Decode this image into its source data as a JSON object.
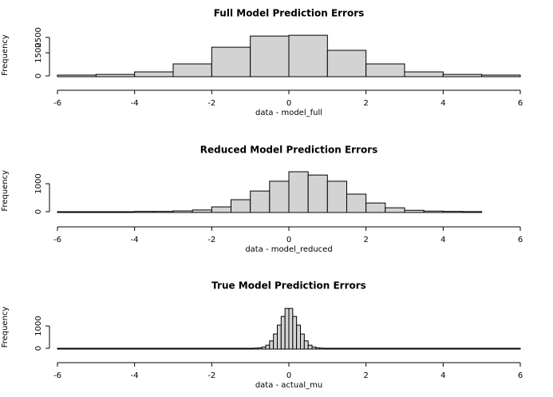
{
  "chart_data": [
    {
      "type": "histogram",
      "title": "Full Model Prediction Errors",
      "xlabel": "data - model_full",
      "ylabel": "Frequency",
      "bins": [
        -6,
        -5,
        -4,
        -3,
        -2,
        -1,
        0,
        1,
        2,
        3,
        4,
        5,
        6
      ],
      "counts": [
        50,
        100,
        260,
        780,
        1860,
        2590,
        2640,
        1660,
        780,
        260,
        100,
        50
      ],
      "color": "#d3d3d3",
      "xlim": [
        -6,
        6
      ],
      "xticks": [
        -6,
        -4,
        -2,
        0,
        2,
        4,
        6
      ],
      "ylim": [
        0,
        2700
      ],
      "yticks": [
        0,
        1500,
        2500
      ]
    },
    {
      "type": "histogram",
      "title": "Reduced Model Prediction Errors",
      "xlabel": "data - model_reduced",
      "ylabel": "Frequency",
      "bins": [
        -6,
        -5.5,
        -5,
        -4.5,
        -4,
        -3.5,
        -3,
        -2.5,
        -2,
        -1.5,
        -1,
        -0.5,
        0,
        0.5,
        1,
        1.5,
        2,
        2.5,
        3,
        3.5,
        4,
        4.5,
        5
      ],
      "counts": [
        0,
        0,
        0,
        0,
        10,
        10,
        30,
        60,
        170,
        430,
        740,
        1090,
        1430,
        1310,
        1090,
        630,
        310,
        140,
        50,
        20,
        10,
        5
      ],
      "color": "#d3d3d3",
      "xlim": [
        -6,
        6
      ],
      "xticks": [
        -6,
        -4,
        -2,
        0,
        2,
        4,
        6
      ],
      "ylim": [
        0,
        1500
      ],
      "yticks": [
        0,
        1000
      ]
    },
    {
      "type": "histogram",
      "title": "True Model Prediction Errors",
      "xlabel": "data - actual_mu",
      "ylabel": "Frequency",
      "bins": [
        -6,
        -5.9,
        -5.8,
        -5.7,
        -5.6,
        -5.5,
        -5.4,
        -5.3,
        -5.2,
        -5.1,
        -5,
        -4.9,
        -4.8,
        -4.7,
        -4.6,
        -4.5,
        -4.4,
        -4.3,
        -4.2,
        -4.1,
        -4,
        -3.9,
        -3.8,
        -3.7,
        -3.6,
        -3.5,
        -3.4,
        -3.3,
        -3.2,
        -3.1,
        -3,
        -2.9,
        -2.8,
        -2.7,
        -2.6,
        -2.5,
        -2.4,
        -2.3,
        -2.2,
        -2.1,
        -2,
        -1.9,
        -1.8,
        -1.7,
        -1.6,
        -1.5,
        -1.4,
        -1.3,
        -1.2,
        -1.1,
        -1,
        -0.9,
        -0.8,
        -0.7,
        -0.6,
        -0.5,
        -0.4,
        -0.3,
        -0.2,
        -0.1,
        0,
        0.1,
        0.2,
        0.3,
        0.4,
        0.5,
        0.6,
        0.7,
        0.8,
        0.9,
        1,
        1.1,
        1.2,
        1.3,
        1.4,
        1.5,
        1.6,
        1.7,
        1.8,
        1.9,
        2,
        2.1,
        2.2,
        2.3,
        2.4,
        2.5,
        2.6,
        2.7,
        2.8,
        2.9,
        3,
        3.1,
        3.2,
        3.3,
        3.4,
        3.5,
        3.6,
        3.7,
        3.8,
        3.9,
        4,
        4.1,
        4.2,
        4.3,
        4.4,
        4.5,
        4.6,
        4.7,
        4.8,
        4.9,
        5,
        5.1,
        5.2,
        5.3,
        5.4,
        5.5,
        5.6,
        5.7,
        5.8,
        5.9,
        6
      ],
      "counts": [
        0,
        0,
        0,
        0,
        0,
        0,
        0,
        0,
        0,
        0,
        0,
        0,
        0,
        0,
        0,
        0,
        0,
        0,
        0,
        0,
        0,
        0,
        0,
        0,
        0,
        0,
        0,
        0,
        0,
        0,
        0,
        0,
        0,
        0,
        0,
        0,
        0,
        0,
        0,
        0,
        0,
        0,
        0,
        0,
        0,
        0,
        0,
        0,
        0,
        0,
        0,
        10,
        20,
        60,
        140,
        330,
        640,
        1040,
        1430,
        1790,
        1790,
        1430,
        1040,
        640,
        330,
        140,
        60,
        20,
        10,
        0,
        0,
        0,
        0,
        0,
        0,
        0,
        0,
        0,
        0,
        0,
        0,
        0,
        0,
        0,
        0,
        0,
        0,
        0,
        0,
        0,
        0,
        0,
        0,
        0,
        0,
        0,
        0,
        0,
        0,
        0,
        0,
        0,
        0,
        0,
        0,
        0,
        0,
        0,
        0,
        0,
        0,
        0,
        0,
        0,
        0,
        0,
        0,
        0,
        0,
        0
      ],
      "color": "#d3d3d3",
      "xlim": [
        -6,
        6
      ],
      "xticks": [
        -6,
        -4,
        -2,
        0,
        2,
        4,
        6
      ],
      "ylim": [
        0,
        1900
      ],
      "yticks": [
        0,
        1000
      ]
    }
  ]
}
